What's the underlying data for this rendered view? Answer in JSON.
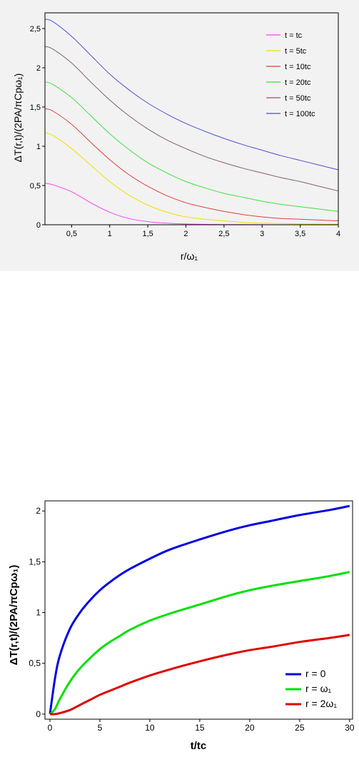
{
  "chart_data": [
    {
      "type": "line",
      "xlabel": "r/ω₁",
      "ylabel": "ΔT(r,t)/(2PA/πCpω₁)",
      "xlim": [
        0.15,
        4
      ],
      "ylim": [
        0,
        2.7
      ],
      "x_ticks": [
        {
          "v": 0.5,
          "label": "0,5"
        },
        {
          "v": 1,
          "label": "1"
        },
        {
          "v": 1.5,
          "label": "1,5"
        },
        {
          "v": 2,
          "label": "2"
        },
        {
          "v": 2.5,
          "label": "2,5"
        },
        {
          "v": 3,
          "label": "3"
        },
        {
          "v": 3.5,
          "label": "3,5"
        },
        {
          "v": 4,
          "label": "4"
        }
      ],
      "y_ticks": [
        {
          "v": 0,
          "label": "0"
        },
        {
          "v": 0.5,
          "label": "0,5"
        },
        {
          "v": 1,
          "label": "1"
        },
        {
          "v": 1.5,
          "label": "1,5"
        },
        {
          "v": 2,
          "label": "2"
        },
        {
          "v": 2.5,
          "label": "2,5"
        }
      ],
      "grid": false,
      "legend_position": "top-right",
      "x": [
        0.15,
        0.25,
        0.5,
        0.75,
        1.0,
        1.25,
        1.5,
        1.75,
        2.0,
        2.25,
        2.5,
        2.75,
        3.0,
        3.25,
        3.5,
        3.75,
        4.0
      ],
      "series": [
        {
          "name": "t = tc",
          "color": "#ff40ff",
          "values": [
            0.53,
            0.51,
            0.42,
            0.28,
            0.16,
            0.08,
            0.04,
            0.02,
            0.01,
            0.005,
            0.003,
            0.002,
            0.001,
            0.0,
            0.0,
            0.0,
            0.0
          ]
        },
        {
          "name": "t = 5tc",
          "color": "#f0e000",
          "values": [
            1.17,
            1.14,
            0.97,
            0.76,
            0.55,
            0.38,
            0.25,
            0.16,
            0.1,
            0.07,
            0.05,
            0.03,
            0.02,
            0.015,
            0.01,
            0.008,
            0.005
          ]
        },
        {
          "name": "t = 10tc",
          "color": "#e04040",
          "values": [
            1.48,
            1.45,
            1.28,
            1.05,
            0.83,
            0.64,
            0.49,
            0.37,
            0.28,
            0.22,
            0.17,
            0.13,
            0.1,
            0.08,
            0.07,
            0.06,
            0.05
          ]
        },
        {
          "name": "t = 20tc",
          "color": "#40e040",
          "values": [
            1.82,
            1.79,
            1.62,
            1.39,
            1.16,
            0.96,
            0.79,
            0.66,
            0.55,
            0.47,
            0.4,
            0.35,
            0.3,
            0.26,
            0.23,
            0.2,
            0.17
          ]
        },
        {
          "name": "t = 50tc",
          "color": "#806070",
          "values": [
            2.27,
            2.24,
            2.06,
            1.82,
            1.59,
            1.39,
            1.22,
            1.08,
            0.97,
            0.87,
            0.79,
            0.72,
            0.66,
            0.6,
            0.55,
            0.49,
            0.43
          ]
        },
        {
          "name": "t = 100tc",
          "color": "#5050d0",
          "values": [
            2.62,
            2.59,
            2.4,
            2.16,
            1.92,
            1.72,
            1.55,
            1.41,
            1.29,
            1.19,
            1.1,
            1.02,
            0.95,
            0.88,
            0.82,
            0.76,
            0.7
          ]
        }
      ]
    },
    {
      "type": "line",
      "xlabel": "t/tc",
      "ylabel": "ΔT(r,t)/(2PA/πCpω₁)",
      "xlim": [
        -0.5,
        30.3
      ],
      "ylim": [
        -0.05,
        2.1
      ],
      "x_ticks": [
        {
          "v": 0,
          "label": "0"
        },
        {
          "v": 5,
          "label": "5"
        },
        {
          "v": 10,
          "label": "10"
        },
        {
          "v": 15,
          "label": "15"
        },
        {
          "v": 20,
          "label": "20"
        },
        {
          "v": 25,
          "label": "25"
        },
        {
          "v": 30,
          "label": "30"
        }
      ],
      "y_ticks": [
        {
          "v": 0,
          "label": "0"
        },
        {
          "v": 0.5,
          "label": "0,5"
        },
        {
          "v": 1,
          "label": "1"
        },
        {
          "v": 1.5,
          "label": "1,5"
        },
        {
          "v": 2,
          "label": "2"
        }
      ],
      "grid": false,
      "legend_position": "bottom-right",
      "x": [
        0,
        0.5,
        1,
        2,
        3,
        4,
        5,
        6,
        7,
        8,
        10,
        12,
        15,
        18,
        20,
        22,
        25,
        28,
        30
      ],
      "series": [
        {
          "name": "r = 0",
          "color": "#0000e0",
          "values": [
            0.0,
            0.35,
            0.58,
            0.84,
            1.0,
            1.12,
            1.22,
            1.3,
            1.37,
            1.43,
            1.53,
            1.62,
            1.72,
            1.81,
            1.86,
            1.9,
            1.96,
            2.01,
            2.05
          ]
        },
        {
          "name": "r = ω₁",
          "color": "#00e000",
          "values": [
            0.0,
            0.05,
            0.15,
            0.32,
            0.45,
            0.55,
            0.64,
            0.71,
            0.77,
            0.83,
            0.92,
            0.99,
            1.08,
            1.17,
            1.22,
            1.26,
            1.31,
            1.36,
            1.4
          ]
        },
        {
          "name": "r = 2ω₁",
          "color": "#e00000",
          "values": [
            0.0,
            0.0,
            0.01,
            0.04,
            0.09,
            0.14,
            0.19,
            0.23,
            0.27,
            0.31,
            0.38,
            0.44,
            0.52,
            0.59,
            0.63,
            0.66,
            0.71,
            0.75,
            0.78
          ]
        }
      ]
    }
  ]
}
